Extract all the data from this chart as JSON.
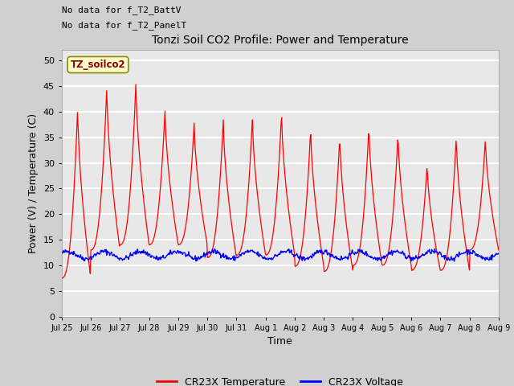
{
  "title": "Tonzi Soil CO2 Profile: Power and Temperature",
  "xlabel": "Time",
  "ylabel": "Power (V) / Temperature (C)",
  "ylim": [
    0,
    52
  ],
  "yticks": [
    0,
    5,
    10,
    15,
    20,
    25,
    30,
    35,
    40,
    45,
    50
  ],
  "xtick_labels": [
    "Jul 25",
    "Jul 26",
    "Jul 27",
    "Jul 28",
    "Jul 29",
    "Jul 30",
    "Jul 31",
    "Aug 1",
    "Aug 2",
    "Aug 3",
    "Aug 4",
    "Aug 5",
    "Aug 6",
    "Aug 7",
    "Aug 8",
    "Aug 9"
  ],
  "top_left_text_line1": "No data for f_T2_BattV",
  "top_left_text_line2": "No data for f_T2_PanelT",
  "legend_box_label": "TZ_soilco2",
  "legend_items": [
    "CR23X Temperature",
    "CR23X Voltage"
  ],
  "fig_bg_color": "#d0d0d0",
  "plot_bg_color": "#e8e8e8",
  "grid_color": "white",
  "red_line_color": "red",
  "blue_line_color": "blue",
  "day_peaks": [
    41,
    45,
    46,
    40.5,
    38,
    38.5,
    39,
    40,
    37,
    35.5,
    37.5,
    36,
    30,
    35.5,
    35
  ],
  "day_mins": [
    7.5,
    13,
    14,
    14,
    14,
    11.5,
    12,
    12,
    9.8,
    8.8,
    10,
    10,
    9,
    9,
    13
  ],
  "blue_base": 12.0,
  "blue_amp": 0.7,
  "n_days": 15,
  "n_points": 720
}
